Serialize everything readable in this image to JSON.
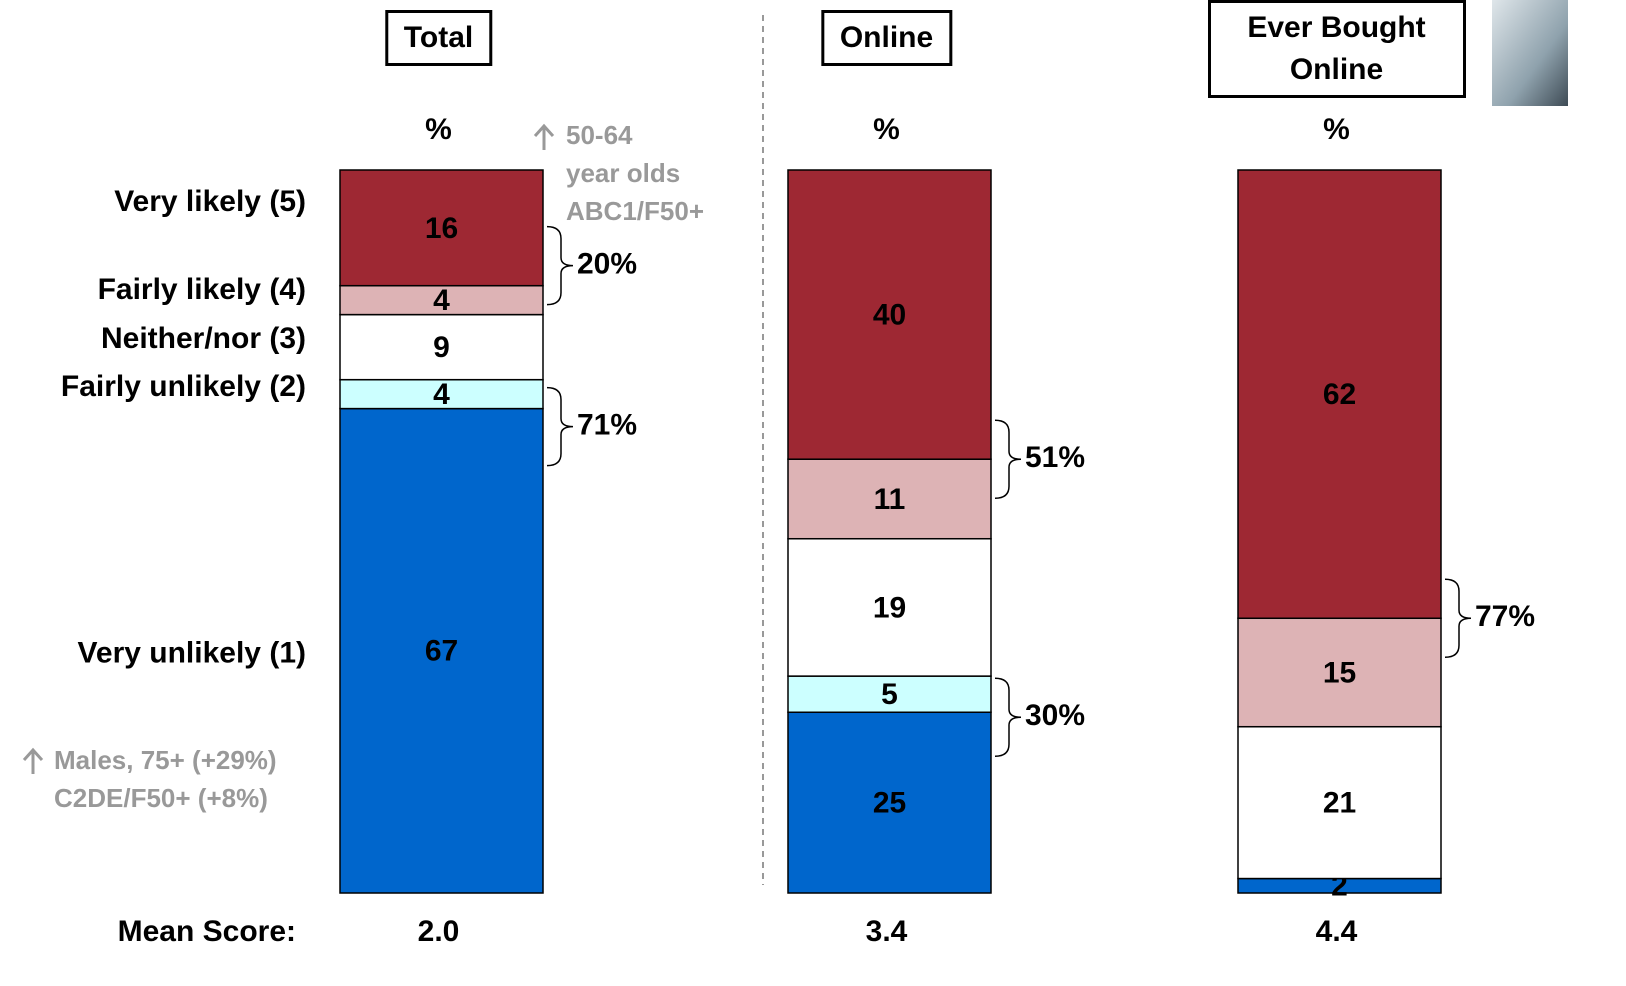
{
  "chart_data": {
    "type": "stacked_bar",
    "categories": [
      "Total",
      "Online",
      "Ever Bought Online"
    ],
    "column_units": [
      "%",
      "%",
      "%"
    ],
    "ylim": [
      0,
      100
    ],
    "series": [
      {
        "name": "Very likely (5)",
        "color": "#9e2833",
        "values": [
          16,
          40,
          62
        ]
      },
      {
        "name": "Fairly likely (4)",
        "color": "#ddb3b5",
        "values": [
          4,
          11,
          15
        ]
      },
      {
        "name": "Neither/nor (3)",
        "color": "#ffffff",
        "values": [
          9,
          19,
          21
        ]
      },
      {
        "name": "Fairly unlikely (2)",
        "color": "#ccffff",
        "values": [
          4,
          5,
          0
        ],
        "value_labels": [
          "4",
          "5",
          "-"
        ]
      },
      {
        "name": "Very unlikely (1)",
        "color": "#0066cc",
        "values": [
          67,
          25,
          2
        ]
      }
    ],
    "nets_likely": {
      "values": [
        20,
        51,
        77
      ],
      "value_labels": [
        "20%",
        "51%",
        "77%"
      ]
    },
    "nets_unlikely": {
      "values": [
        71,
        30,
        null
      ],
      "value_labels": [
        "71%",
        "30%",
        null
      ]
    },
    "mean_score_label": "Mean Score:",
    "mean_scores": [
      {
        "value": 2.0,
        "label": "2.0"
      },
      {
        "value": 3.4,
        "label": "3.4"
      },
      {
        "value": 4.4,
        "label": "4.4"
      }
    ],
    "annotations": [
      {
        "lines": [
          "50-64",
          "year olds",
          "ABC1/F50+"
        ]
      },
      {
        "lines": [
          "Males, 75+ (+29%)",
          "C2DE/F50+ (+8%)"
        ]
      }
    ]
  }
}
